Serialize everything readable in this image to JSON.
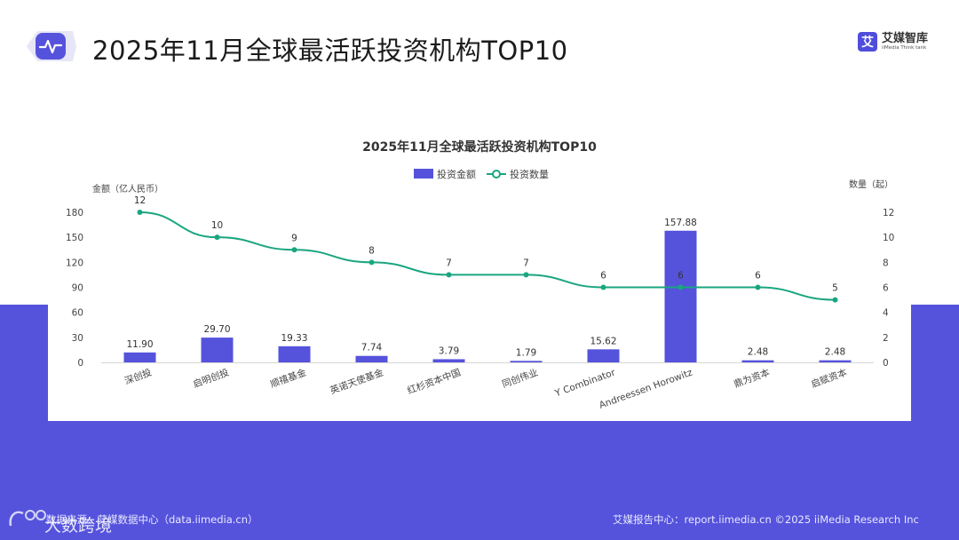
{
  "header": {
    "title": "2025年11月全球最活跃投资机构TOP10",
    "logo_icon": "pulse-icon"
  },
  "brand": {
    "name": "艾媒智库",
    "sub": "iiMedia Think tank",
    "mark": "艾"
  },
  "colors": {
    "bar": "#5553dc",
    "line": "#1aa680",
    "band": "#5553dc"
  },
  "chart_data": {
    "type": "bar",
    "title": "2025年11月全球最活跃投资机构TOP10",
    "legend": [
      "投资金额",
      "投资数量"
    ],
    "legend_position": "top-center",
    "ylabel_left": "金额（亿人民币）",
    "ylabel_right": "数量（起）",
    "ylim_left": [
      0,
      180
    ],
    "ylim_right": [
      0,
      12
    ],
    "yticks_left": [
      0,
      30,
      60,
      90,
      120,
      150,
      180
    ],
    "yticks_right": [
      0,
      2,
      4,
      6,
      8,
      10,
      12
    ],
    "grid": false,
    "categories": [
      "深创投",
      "启明创投",
      "顺禧基金",
      "英诺天使基金",
      "红杉资本中国",
      "同创伟业",
      "Y Combinator",
      "Andreessen Horowitz",
      "鼎为资本",
      "启赋资本"
    ],
    "series": [
      {
        "name": "投资金额",
        "type": "bar",
        "axis": "left",
        "values": [
          11.9,
          29.7,
          19.33,
          7.74,
          3.79,
          1.79,
          15.62,
          157.88,
          2.48,
          2.48
        ],
        "labels": [
          "11.90",
          "29.70",
          "19.33",
          "7.74",
          "3.79",
          "1.79",
          "15.62",
          "157.88",
          "2.48",
          "2.48"
        ]
      },
      {
        "name": "投资数量",
        "type": "line",
        "axis": "right",
        "values": [
          12,
          10,
          9,
          8,
          7,
          7,
          6,
          6,
          6,
          5
        ],
        "labels": [
          "12",
          "10",
          "9",
          "8",
          "7",
          "7",
          "6",
          "6",
          "6",
          "5"
        ]
      }
    ]
  },
  "footer": {
    "source": "数据来源：艾媒数据中心（data.iimedia.cn）",
    "report": "艾媒报告中心：report.iimedia.cn ©2025 iiMedia Research Inc"
  },
  "watermark": {
    "text": "大数跨境"
  }
}
